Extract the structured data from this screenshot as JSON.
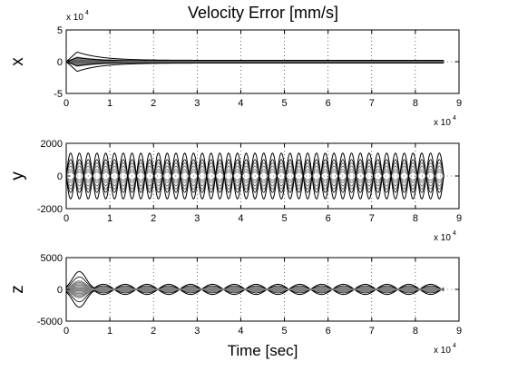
{
  "chart_data": [
    {
      "type": "line",
      "title": "Velocity Error [mm/s]",
      "ylabel": "x",
      "xlabel": "",
      "xlim": [
        0,
        9
      ],
      "ylim": [
        -5,
        5
      ],
      "x_ticks": [
        "0",
        "1",
        "2",
        "3",
        "4",
        "5",
        "6",
        "7",
        "8",
        "9"
      ],
      "y_ticks": [
        "5",
        "0",
        "-5"
      ],
      "x_multiplier": {
        "base": "x 10",
        "exp": "4"
      },
      "y_multiplier": {
        "base": "x 10",
        "exp": "4"
      },
      "grid": true,
      "x_end": 8.65,
      "envelope": {
        "peak": 1.8,
        "peak_at": 0.25,
        "decay": 0.55,
        "floor": 0.25,
        "period": 1.3
      },
      "series_colors": [
        "#000000",
        "#808080"
      ]
    },
    {
      "type": "line",
      "title": "",
      "ylabel": "y",
      "xlabel": "",
      "xlim": [
        0,
        9
      ],
      "ylim": [
        -2000,
        2000
      ],
      "x_ticks": [
        "0",
        "1",
        "2",
        "3",
        "4",
        "5",
        "6",
        "7",
        "8",
        "9"
      ],
      "y_ticks": [
        "2000",
        "0",
        "-2000"
      ],
      "x_multiplier": {
        "base": "x 10",
        "exp": "4"
      },
      "grid": true,
      "x_end": 8.65,
      "oscillation": {
        "amplitude": 1400,
        "cycles": 21.5,
        "inner_amplitudes": [
          800,
          600,
          400,
          250
        ]
      },
      "series_colors": [
        "#000000",
        "#808080"
      ]
    },
    {
      "type": "line",
      "title": "",
      "ylabel": "z",
      "xlabel": "Time [sec]",
      "xlim": [
        0,
        9
      ],
      "ylim": [
        -5000,
        5000
      ],
      "x_ticks": [
        "0",
        "1",
        "2",
        "3",
        "4",
        "5",
        "6",
        "7",
        "8",
        "9"
      ],
      "y_ticks": [
        "5000",
        "0",
        "-5000"
      ],
      "x_multiplier": {
        "base": "x 10",
        "exp": "4"
      },
      "grid": true,
      "x_end": 8.65,
      "beats": {
        "first_peak": 2800,
        "first_peak_at": 0.3,
        "later_amplitude": 800,
        "period": 0.5
      },
      "series_colors": [
        "#000000",
        "#808080"
      ]
    }
  ]
}
